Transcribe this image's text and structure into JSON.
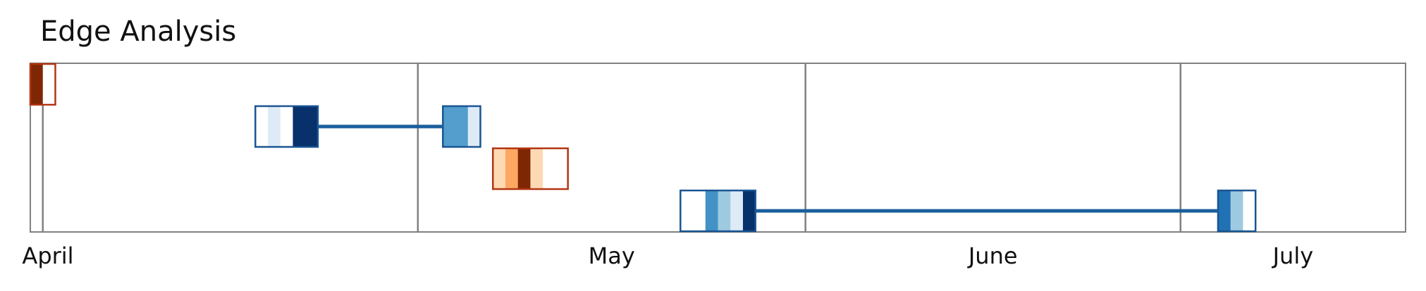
{
  "chart_data": {
    "type": "timeline",
    "title": "Edge Analysis",
    "x_axis": {
      "tick_labels": [
        "April",
        "May",
        "June",
        "July"
      ],
      "month_boundaries": [
        "2023-04-01",
        "2023-05-01",
        "2023-06-01",
        "2023-07-01"
      ],
      "range": [
        "2023-03-31",
        "2023-07-19"
      ]
    },
    "grid": false,
    "legend": "none",
    "colors": {
      "blue_border": "#1a5592",
      "blue_connector": "#1a5e9c",
      "orange_border": "#b23512",
      "frame": "#808080"
    },
    "rows": [
      {
        "scheme": "oranges",
        "groups": [
          {
            "start": "2023-03-31",
            "cells": [
              "#7f2704",
              "#ffffff"
            ]
          }
        ]
      },
      {
        "scheme": "blues",
        "groups": [
          {
            "start": "2023-04-18",
            "cells": [
              "#ffffff",
              "#deebf7",
              "#ffffff",
              "#08306b",
              "#08306b"
            ]
          },
          {
            "start": "2023-05-03",
            "cells": [
              "#539ecd",
              "#539ecd",
              "#deebf7"
            ]
          }
        ]
      },
      {
        "scheme": "oranges",
        "groups": [
          {
            "start": "2023-05-07",
            "cells": [
              "#fdd9b4",
              "#fda762",
              "#7f2704",
              "#fdd9b4",
              "#ffffff",
              "#ffffff"
            ]
          }
        ]
      },
      {
        "scheme": "blues",
        "groups": [
          {
            "start": "2023-05-22",
            "cells": [
              "#ffffff",
              "#ffffff",
              "#4292c6",
              "#9ecae1",
              "#deebf7",
              "#08306b"
            ]
          },
          {
            "start": "2023-07-04",
            "cells": [
              "#2171b5",
              "#9ecae1",
              "#ffffff"
            ]
          }
        ]
      }
    ]
  }
}
